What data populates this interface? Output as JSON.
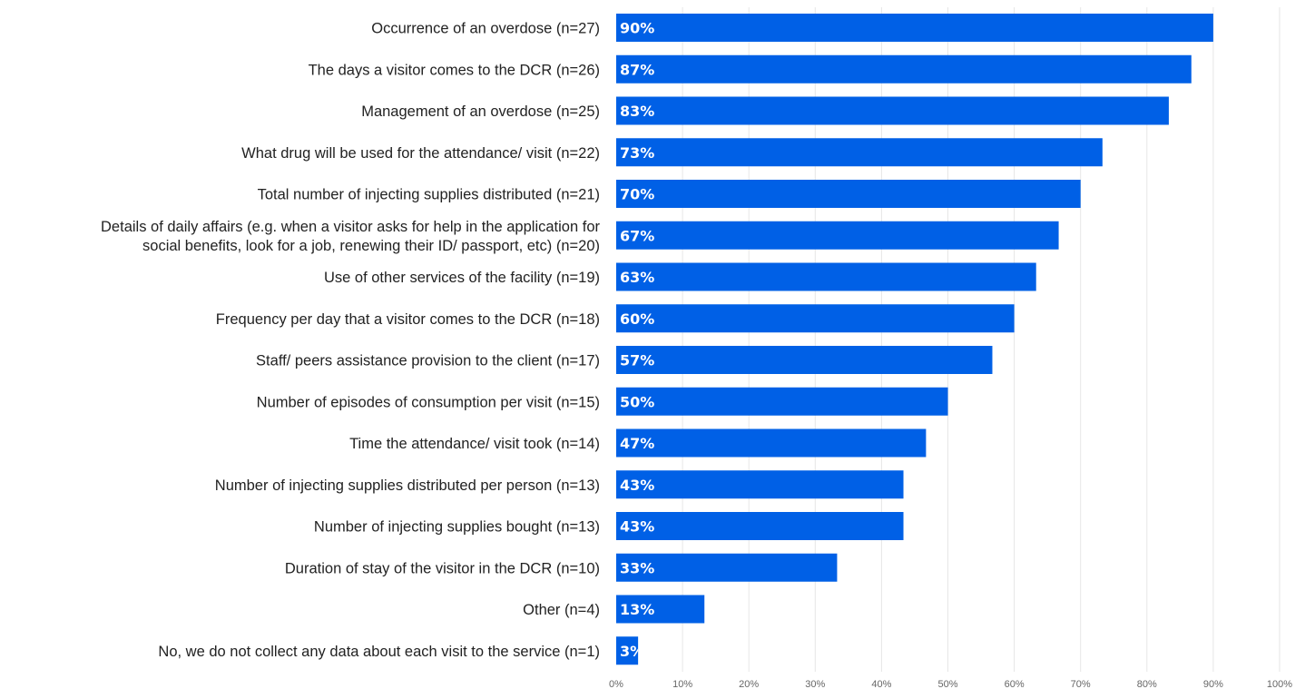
{
  "chart_data": {
    "type": "bar",
    "orientation": "horizontal",
    "categories": [
      [
        "Occurrence of an overdose  (n=27)"
      ],
      [
        "The days a visitor comes to the DCR (n=26)"
      ],
      [
        "Management of an overdose (n=25)"
      ],
      [
        "What drug will be used for the attendance/ visit (n=22)"
      ],
      [
        "Total number of injecting supplies distributed (n=21)"
      ],
      [
        "Details of daily affairs (e.g. when a visitor asks for help in the application for",
        "social benefits, look for a job, renewing their ID/ passport, etc) (n=20)"
      ],
      [
        "Use of other services of the facility (n=19)"
      ],
      [
        "Frequency per day that a visitor comes to the DCR (n=18)"
      ],
      [
        "Staff/ peers assistance provision to the client (n=17)"
      ],
      [
        "Number of episodes of consumption per visit (n=15)"
      ],
      [
        "Time the attendance/ visit took (n=14)"
      ],
      [
        "Number of injecting supplies distributed per person (n=13)"
      ],
      [
        "Number of injecting supplies bought (n=13)"
      ],
      [
        "Duration of stay of the visitor in the DCR (n=10)"
      ],
      [
        "Other (n=4)"
      ],
      [
        "No, we do not collect any data about each visit to the service (n=1)"
      ]
    ],
    "values": [
      90,
      86.7,
      83.3,
      73.3,
      70,
      66.7,
      63.3,
      60,
      56.7,
      50,
      46.7,
      43.3,
      43.3,
      33.3,
      13.3,
      3.3
    ],
    "value_labels": [
      "90%",
      "87%",
      "83%",
      "73%",
      "70%",
      "67%",
      "63%",
      "60%",
      "57%",
      "50%",
      "47%",
      "43%",
      "43%",
      "33%",
      "13%",
      "3%"
    ],
    "x_ticks": [
      "0%",
      "10%",
      "20%",
      "30%",
      "40%",
      "50%",
      "60%",
      "70%",
      "80%",
      "90%",
      "100%"
    ],
    "xlim": [
      0,
      100
    ],
    "bar_color": "#0060e6",
    "grid": true,
    "legend": "none"
  }
}
